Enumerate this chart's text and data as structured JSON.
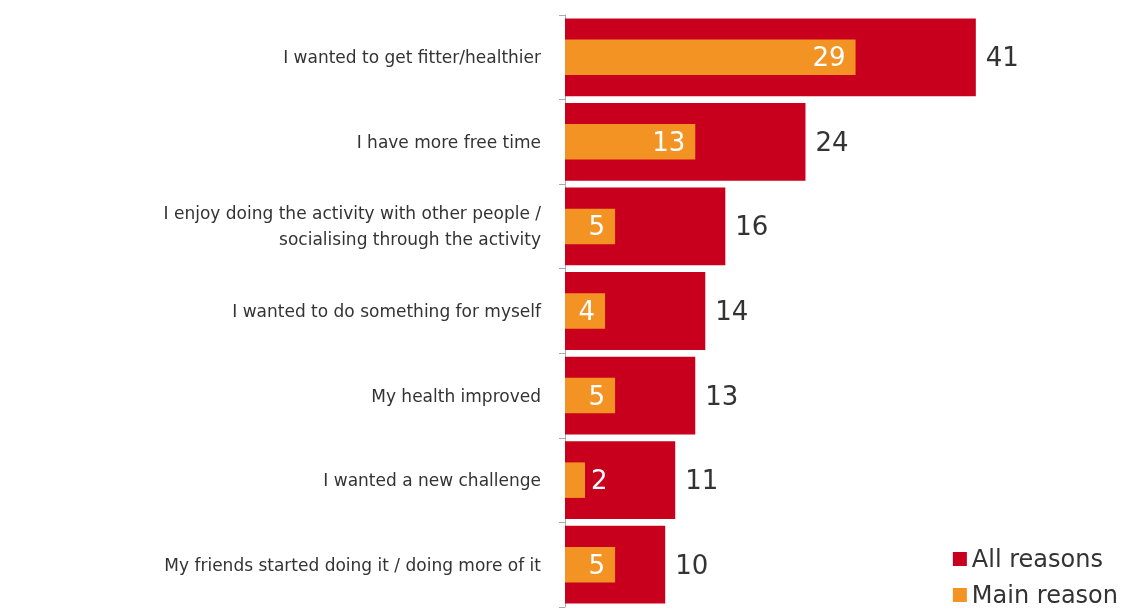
{
  "chart_data": {
    "type": "bar",
    "orientation": "horizontal",
    "categories": [
      "I wanted to get fitter/healthier",
      "I have more free time",
      "I enjoy doing the activity with other people /\nsocialising through the activity",
      "I wanted to do something for myself",
      "My health improved",
      "I wanted a new challenge",
      "My friends started doing it / doing more of it"
    ],
    "series": [
      {
        "name": "All reasons",
        "color": "#c8001e",
        "values": [
          41,
          24,
          16,
          14,
          13,
          11,
          10
        ]
      },
      {
        "name": "Main reason",
        "color": "#f39323",
        "values": [
          29,
          13,
          5,
          4,
          5,
          2,
          5
        ]
      }
    ],
    "data_labels": true,
    "legend": "bottom right"
  }
}
